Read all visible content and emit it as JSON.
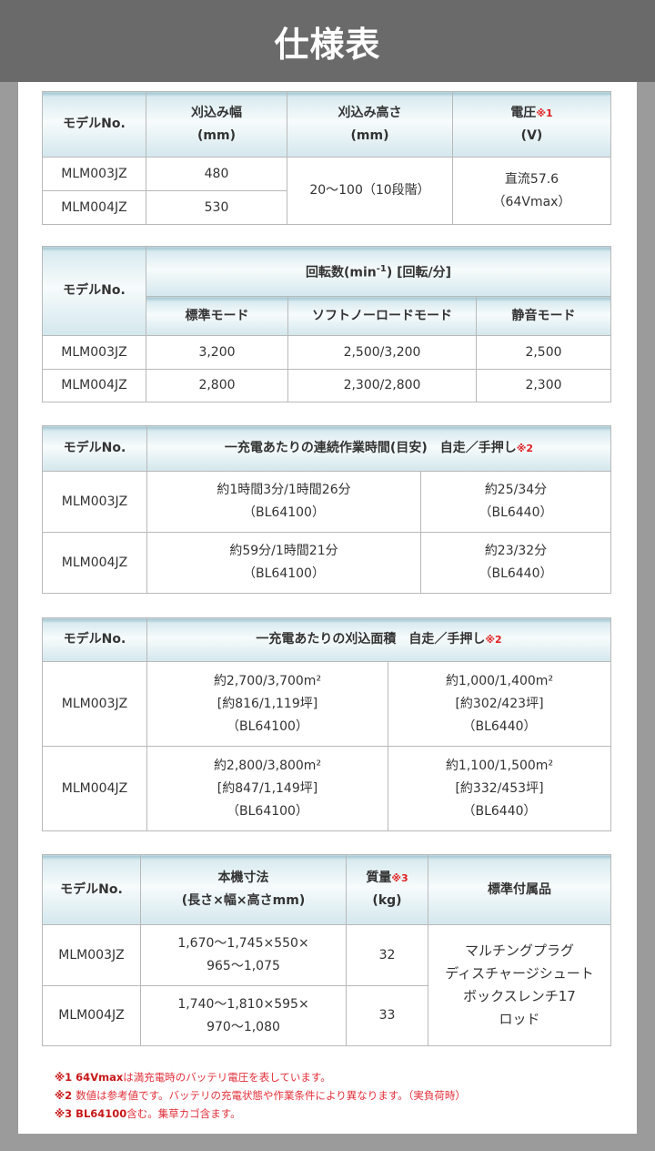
{
  "title": "仕様表",
  "model_label": "モデルNo.",
  "t1": {
    "h": [
      "刈込み幅",
      "(mm)",
      "刈込み高さ",
      "(mm)",
      "電圧",
      "※1",
      "(V)"
    ],
    "rows": [
      [
        "MLM003JZ",
        "480"
      ],
      [
        "MLM004JZ",
        "530"
      ]
    ],
    "height": "20～100（10段階）",
    "voltage": [
      "直流57.6",
      "（64Vmax）"
    ]
  },
  "t2": {
    "group": "回転数(min",
    "sup": "-1",
    "group_tail": ") [回転/分]",
    "h": [
      "標準モード",
      "ソフトノーロードモード",
      "静音モード"
    ],
    "rows": [
      [
        "MLM003JZ",
        "3,200",
        "2,500/3,200",
        "2,500"
      ],
      [
        "MLM004JZ",
        "2,800",
        "2,300/2,800",
        "2,300"
      ]
    ]
  },
  "t3": {
    "h": "一充電あたりの連続作業時間(目安)　自走／手押し",
    "sup": "※2",
    "rows": [
      [
        "MLM003JZ",
        "約1時間3分/1時間26分",
        "（BL64100）",
        "約25/34分",
        "（BL6440）"
      ],
      [
        "MLM004JZ",
        "約59分/1時間21分",
        "（BL64100）",
        "約23/32分",
        "（BL6440）"
      ]
    ]
  },
  "t4": {
    "h": "一充電あたりの刈込面積　自走／手押し",
    "sup": "※2",
    "rows": [
      [
        "MLM003JZ",
        "約2,700/3,700m²",
        "[約816/1,119坪]",
        "（BL64100）",
        "約1,000/1,400m²",
        "[約302/423坪]",
        "（BL6440）"
      ],
      [
        "MLM004JZ",
        "約2,800/3,800m²",
        "[約847/1,149坪]",
        "（BL64100）",
        "約1,100/1,500m²",
        "[約332/453坪]",
        "（BL6440）"
      ]
    ]
  },
  "t5": {
    "h": [
      "本機寸法",
      "(長さ×幅×高さmm)",
      "質量",
      "※3",
      "(kg)",
      "標準付属品"
    ],
    "rows": [
      [
        "MLM003JZ",
        "1,670～1,745×550×",
        "965～1,075",
        "32"
      ],
      [
        "MLM004JZ",
        "1,740～1,810×595×",
        "970～1,080",
        "33"
      ]
    ],
    "accessories": [
      "マルチングプラグ",
      "ディスチャージシュート",
      "ボックスレンチ17",
      "ロッド"
    ]
  },
  "notes": [
    [
      "※1 64Vmax",
      "は満充電時のバッテリ電圧を表しています。"
    ],
    [
      "※2 ",
      "数値は参考値です。バッテリの充電状態や作業条件により異なります。（実負荷時）"
    ],
    [
      "※3 BL64100",
      "含む。集草カゴ含ます。"
    ]
  ]
}
